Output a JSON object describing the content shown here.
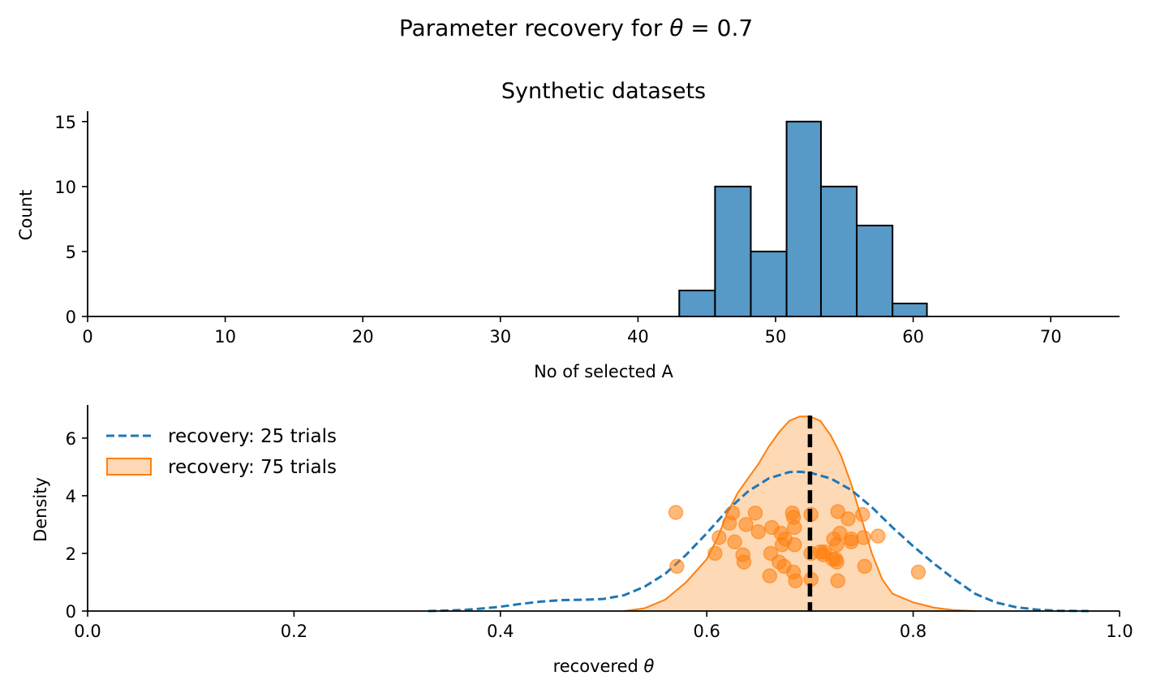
{
  "suptitle": {
    "prefix": "Parameter recovery for ",
    "symbol": "θ",
    "suffix": " = 0.7"
  },
  "chart_data": [
    {
      "type": "bar",
      "title": "Synthetic datasets",
      "xlabel": "No of selected A",
      "ylabel": "Count",
      "xlim": [
        0,
        75
      ],
      "ylim": [
        0,
        15.8
      ],
      "xticks": [
        0,
        10,
        20,
        30,
        40,
        50,
        60,
        70
      ],
      "yticks": [
        0,
        5,
        10,
        15
      ],
      "color": "#5799c7",
      "edgecolor": "#000000",
      "bins": [
        {
          "x0": 43.0,
          "x1": 45.6,
          "count": 2
        },
        {
          "x0": 45.6,
          "x1": 48.2,
          "count": 10
        },
        {
          "x0": 48.2,
          "x1": 50.8,
          "count": 5
        },
        {
          "x0": 50.8,
          "x1": 53.3,
          "count": 15
        },
        {
          "x0": 53.3,
          "x1": 55.9,
          "count": 10
        },
        {
          "x0": 55.9,
          "x1": 58.5,
          "count": 7
        },
        {
          "x0": 58.5,
          "x1": 61.0,
          "count": 1
        }
      ]
    },
    {
      "type": "line",
      "xlabel_prefix": "recovered ",
      "xlabel_symbol": "θ",
      "ylabel": "Density",
      "xlim": [
        0.0,
        1.0
      ],
      "ylim": [
        0,
        7.15
      ],
      "xticks": [
        "0.0",
        "0.2",
        "0.4",
        "0.6",
        "0.8",
        "1.0"
      ],
      "yticks": [
        0,
        2,
        4,
        6
      ],
      "true_value": 0.7,
      "legend_position": "upper-left",
      "series": [
        {
          "name": "recovery: 25 trials",
          "style": "dashed",
          "color": "#1f77b4",
          "x": [
            0.33,
            0.36,
            0.38,
            0.4,
            0.42,
            0.44,
            0.46,
            0.48,
            0.5,
            0.52,
            0.54,
            0.56,
            0.58,
            0.6,
            0.62,
            0.64,
            0.66,
            0.68,
            0.69,
            0.7,
            0.72,
            0.74,
            0.76,
            0.78,
            0.8,
            0.82,
            0.84,
            0.86,
            0.88,
            0.9,
            0.92,
            0.94,
            0.97
          ],
          "y": [
            0.0,
            0.03,
            0.08,
            0.15,
            0.25,
            0.33,
            0.38,
            0.39,
            0.42,
            0.55,
            0.85,
            1.3,
            1.95,
            2.7,
            3.5,
            4.15,
            4.6,
            4.82,
            4.83,
            4.8,
            4.6,
            4.2,
            3.6,
            2.9,
            2.25,
            1.65,
            1.1,
            0.6,
            0.3,
            0.13,
            0.05,
            0.01,
            0.0
          ]
        },
        {
          "name": "recovery: 75 trials",
          "style": "filled",
          "color": "#ff7f0e",
          "fill": "#fdd9b5",
          "x": [
            0.52,
            0.54,
            0.56,
            0.58,
            0.6,
            0.61,
            0.62,
            0.63,
            0.64,
            0.65,
            0.66,
            0.67,
            0.68,
            0.69,
            0.7,
            0.71,
            0.72,
            0.73,
            0.74,
            0.75,
            0.76,
            0.77,
            0.78,
            0.8,
            0.82,
            0.84,
            0.86
          ],
          "y": [
            0.0,
            0.1,
            0.4,
            1.0,
            1.8,
            2.5,
            3.4,
            4.1,
            4.6,
            5.1,
            5.7,
            6.2,
            6.6,
            6.75,
            6.75,
            6.6,
            6.1,
            5.4,
            4.4,
            3.2,
            2.0,
            1.1,
            0.6,
            0.3,
            0.12,
            0.03,
            0.0
          ]
        }
      ],
      "scatter": {
        "color": "#ff7f0e",
        "points": [
          [
            0.57,
            3.42
          ],
          [
            0.571,
            1.55
          ],
          [
            0.608,
            2.0
          ],
          [
            0.612,
            2.55
          ],
          [
            0.622,
            3.05
          ],
          [
            0.625,
            3.4
          ],
          [
            0.627,
            2.4
          ],
          [
            0.635,
            1.95
          ],
          [
            0.636,
            1.7
          ],
          [
            0.638,
            3.0
          ],
          [
            0.647,
            3.4
          ],
          [
            0.65,
            2.75
          ],
          [
            0.661,
            1.22
          ],
          [
            0.662,
            2.0
          ],
          [
            0.663,
            2.9
          ],
          [
            0.67,
            1.7
          ],
          [
            0.672,
            2.7
          ],
          [
            0.673,
            2.3
          ],
          [
            0.675,
            1.55
          ],
          [
            0.676,
            2.5
          ],
          [
            0.683,
            3.4
          ],
          [
            0.684,
            1.35
          ],
          [
            0.684,
            3.25
          ],
          [
            0.685,
            2.9
          ],
          [
            0.685,
            2.3
          ],
          [
            0.686,
            1.05
          ],
          [
            0.701,
            3.35
          ],
          [
            0.701,
            2.0
          ],
          [
            0.701,
            1.1
          ],
          [
            0.71,
            2.05
          ],
          [
            0.713,
            1.95
          ],
          [
            0.714,
            2.05
          ],
          [
            0.722,
            1.8
          ],
          [
            0.723,
            2.5
          ],
          [
            0.725,
            1.8
          ],
          [
            0.726,
            2.3
          ],
          [
            0.726,
            1.7
          ],
          [
            0.727,
            3.45
          ],
          [
            0.727,
            1.05
          ],
          [
            0.729,
            2.7
          ],
          [
            0.737,
            3.2
          ],
          [
            0.74,
            2.5
          ],
          [
            0.74,
            2.4
          ],
          [
            0.751,
            3.35
          ],
          [
            0.752,
            2.55
          ],
          [
            0.753,
            1.55
          ],
          [
            0.766,
            2.6
          ],
          [
            0.805,
            1.35
          ]
        ]
      }
    }
  ]
}
